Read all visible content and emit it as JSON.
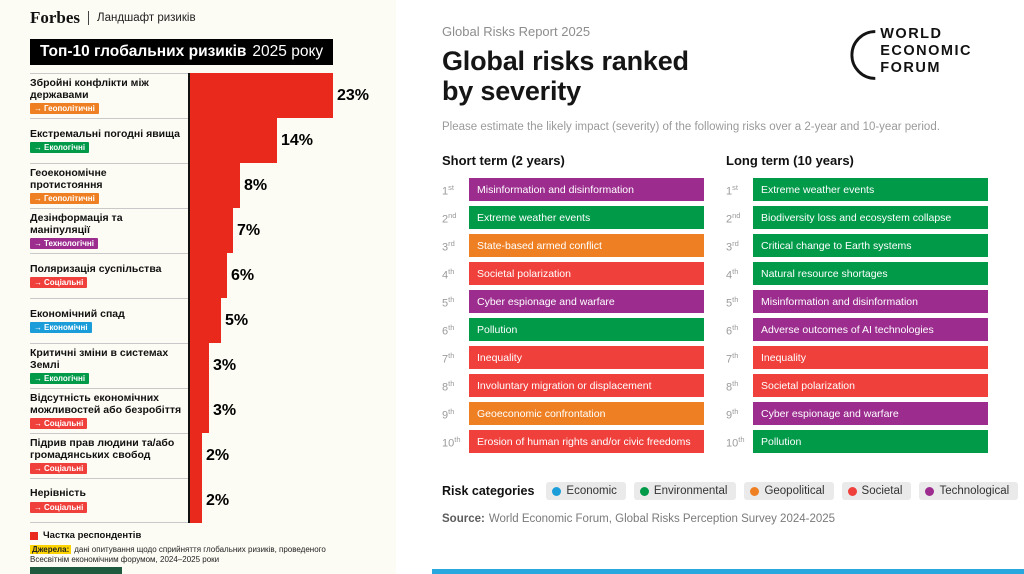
{
  "category_colors": {
    "Economic": "#1B9DD9",
    "Environmental": "#009A49",
    "Geopolitical": "#EE8023",
    "Societal": "#EF403C",
    "Technological": "#9C2D8F"
  },
  "left_panel": {
    "brand": "Forbes",
    "brand_tagline": "Ландшафт ризиків",
    "title_main": "Топ-10 глобальних ризиків",
    "title_year": "2025 року",
    "tag_arrow": "→",
    "bar_color": "#E8291C",
    "footer_bar_color": "#1E5B3E",
    "rows": [
      {
        "label": "Збройні конфлікти між державами",
        "tag": "Геополітичні",
        "category": "Geopolitical",
        "value": 23,
        "value_label": "23%"
      },
      {
        "label": "Екстремальні погодні явища",
        "tag": "Екологічні",
        "category": "Environmental",
        "value": 14,
        "value_label": "14%"
      },
      {
        "label": "Геоекономічне протистояння",
        "tag": "Геополітичні",
        "category": "Geopolitical",
        "value": 8,
        "value_label": "8%"
      },
      {
        "label": "Дезінформація та маніпуляції",
        "tag": "Технологічні",
        "category": "Technological",
        "value": 7,
        "value_label": "7%"
      },
      {
        "label": "Поляризація суспільства",
        "tag": "Соціальні",
        "category": "Societal",
        "value": 6,
        "value_label": "6%"
      },
      {
        "label": "Економічний спад",
        "tag": "Економічні",
        "category": "Economic",
        "value": 5,
        "value_label": "5%"
      },
      {
        "label": "Критичні зміни в системах Землі",
        "tag": "Екологічні",
        "category": "Environmental",
        "value": 3,
        "value_label": "3%"
      },
      {
        "label": "Відсутність економічних можливостей або безробіття",
        "tag": "Соціальні",
        "category": "Societal",
        "value": 3,
        "value_label": "3%"
      },
      {
        "label": "Підрив прав людини та/або громадянських свобод",
        "tag": "Соціальні",
        "category": "Societal",
        "value": 2,
        "value_label": "2%"
      },
      {
        "label": "Нерівність",
        "tag": "Соціальні",
        "category": "Societal",
        "value": 2,
        "value_label": "2%"
      }
    ],
    "legend_label": "Частка респондентів",
    "source_label": "Джерела:",
    "source_text": "дані опитування щодо сприйняття глобальних ризиків, проведеного Всесвітнім економічним форумом, 2024–2025 роки"
  },
  "right_panel": {
    "eyebrow": "Global Risks Report 2025",
    "title_line1": "Global risks ranked",
    "title_line2": "by severity",
    "logo": {
      "line1": "WORLD",
      "line2": "ECONOMIC",
      "line3": "FORUM"
    },
    "subtitle": "Please estimate the likely impact (severity) of the following risks over a 2-year and 10-year period.",
    "bottom_bar_color": "#29A8E0",
    "columns": [
      {
        "header": "Short term (2 years)",
        "items": [
          {
            "rank": "1",
            "suffix": "st",
            "label": "Misinformation and disinformation",
            "category": "Technological"
          },
          {
            "rank": "2",
            "suffix": "nd",
            "label": "Extreme weather events",
            "category": "Environmental"
          },
          {
            "rank": "3",
            "suffix": "rd",
            "label": "State-based armed conflict",
            "category": "Geopolitical"
          },
          {
            "rank": "4",
            "suffix": "th",
            "label": "Societal polarization",
            "category": "Societal"
          },
          {
            "rank": "5",
            "suffix": "th",
            "label": "Cyber espionage and warfare",
            "category": "Technological"
          },
          {
            "rank": "6",
            "suffix": "th",
            "label": "Pollution",
            "category": "Environmental"
          },
          {
            "rank": "7",
            "suffix": "th",
            "label": "Inequality",
            "category": "Societal"
          },
          {
            "rank": "8",
            "suffix": "th",
            "label": "Involuntary migration or displacement",
            "category": "Societal"
          },
          {
            "rank": "9",
            "suffix": "th",
            "label": "Geoeconomic confrontation",
            "category": "Geopolitical"
          },
          {
            "rank": "10",
            "suffix": "th",
            "label": "Erosion of human rights and/or civic freedoms",
            "category": "Societal"
          }
        ]
      },
      {
        "header": "Long term (10 years)",
        "items": [
          {
            "rank": "1",
            "suffix": "st",
            "label": "Extreme weather events",
            "category": "Environmental"
          },
          {
            "rank": "2",
            "suffix": "nd",
            "label": "Biodiversity loss and ecosystem collapse",
            "category": "Environmental"
          },
          {
            "rank": "3",
            "suffix": "rd",
            "label": "Critical change to Earth systems",
            "category": "Environmental"
          },
          {
            "rank": "4",
            "suffix": "th",
            "label": "Natural resource shortages",
            "category": "Environmental"
          },
          {
            "rank": "5",
            "suffix": "th",
            "label": "Misinformation and disinformation",
            "category": "Technological"
          },
          {
            "rank": "6",
            "suffix": "th",
            "label": "Adverse outcomes of AI technologies",
            "category": "Technological"
          },
          {
            "rank": "7",
            "suffix": "th",
            "label": "Inequality",
            "category": "Societal"
          },
          {
            "rank": "8",
            "suffix": "th",
            "label": "Societal polarization",
            "category": "Societal"
          },
          {
            "rank": "9",
            "suffix": "th",
            "label": "Cyber espionage and warfare",
            "category": "Technological"
          },
          {
            "rank": "10",
            "suffix": "th",
            "label": "Pollution",
            "category": "Environmental"
          }
        ]
      }
    ],
    "legend_title": "Risk categories",
    "legend_items": [
      {
        "label": "Economic",
        "category": "Economic"
      },
      {
        "label": "Environmental",
        "category": "Environmental"
      },
      {
        "label": "Geopolitical",
        "category": "Geopolitical"
      },
      {
        "label": "Societal",
        "category": "Societal"
      },
      {
        "label": "Technological",
        "category": "Technological"
      }
    ],
    "source_label": "Source:",
    "source_text": "World Economic Forum, Global Risks Perception Survey 2024-2025"
  },
  "chart_data": [
    {
      "type": "bar",
      "orientation": "horizontal",
      "title": "Топ-10 глобальних ризиків 2025 року",
      "series_name": "Частка респондентів",
      "categories": [
        "Збройні конфлікти між державами",
        "Екстремальні погодні явища",
        "Геоекономічне протистояння",
        "Дезінформація та маніпуляції",
        "Поляризація суспільства",
        "Економічний спад",
        "Критичні зміни в системах Землі",
        "Відсутність економічних можливостей або безробіття",
        "Підрив прав людини та/або громадянських свобод",
        "Нерівність"
      ],
      "values": [
        23,
        14,
        8,
        7,
        6,
        5,
        3,
        3,
        2,
        2
      ],
      "unit": "%",
      "xlim": [
        0,
        25
      ],
      "grid": false,
      "bar_color": "#E8291C",
      "category_tags": [
        "Геополітичні",
        "Екологічні",
        "Геополітичні",
        "Технологічні",
        "Соціальні",
        "Економічні",
        "Екологічні",
        "Соціальні",
        "Соціальні",
        "Соціальні"
      ]
    },
    {
      "type": "table",
      "title": "Global risks ranked by severity",
      "subtitle": "Please estimate the likely impact (severity) of the following risks over a 2-year and 10-year period.",
      "columns": [
        "Short term (2 years)",
        "Long term (10 years)"
      ],
      "ranks": [
        "1st",
        "2nd",
        "3rd",
        "4th",
        "5th",
        "6th",
        "7th",
        "8th",
        "9th",
        "10th"
      ],
      "short_term": [
        "Misinformation and disinformation",
        "Extreme weather events",
        "State-based armed conflict",
        "Societal polarization",
        "Cyber espionage and warfare",
        "Pollution",
        "Inequality",
        "Involuntary migration or displacement",
        "Geoeconomic confrontation",
        "Erosion of human rights and/or civic freedoms"
      ],
      "short_term_categories": [
        "Technological",
        "Environmental",
        "Geopolitical",
        "Societal",
        "Technological",
        "Environmental",
        "Societal",
        "Societal",
        "Geopolitical",
        "Societal"
      ],
      "long_term": [
        "Extreme weather events",
        "Biodiversity loss and ecosystem collapse",
        "Critical change to Earth systems",
        "Natural resource shortages",
        "Misinformation and disinformation",
        "Adverse outcomes of AI technologies",
        "Inequality",
        "Societal polarization",
        "Cyber espionage and warfare",
        "Pollution"
      ],
      "long_term_categories": [
        "Environmental",
        "Environmental",
        "Environmental",
        "Environmental",
        "Technological",
        "Technological",
        "Societal",
        "Societal",
        "Technological",
        "Environmental"
      ],
      "legend": [
        "Economic",
        "Environmental",
        "Geopolitical",
        "Societal",
        "Technological"
      ],
      "legend_position": "bottom"
    }
  ]
}
